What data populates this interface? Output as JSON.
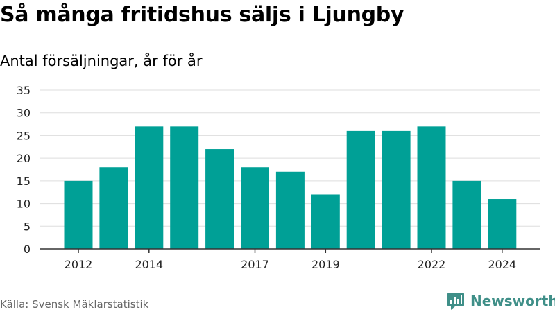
{
  "title": "Så många fritidshus säljs i Ljungby",
  "subtitle": "Antal försäljningar, år för år",
  "source": "Källa: Svensk Mäklarstatistik",
  "brand": {
    "name": "Newsworthy",
    "icon": "bar-chart-logo-icon",
    "color": "#3f8f88"
  },
  "chart_data": {
    "type": "bar",
    "categories": [
      "2012",
      "2013",
      "2014",
      "2015",
      "2016",
      "2017",
      "2018",
      "2019",
      "2020",
      "2021",
      "2022",
      "2023",
      "2024"
    ],
    "values": [
      15,
      18,
      27,
      27,
      22,
      18,
      17,
      12,
      26,
      26,
      27,
      15,
      11
    ],
    "x_tick_labels": [
      "2012",
      "",
      "2014",
      "",
      "",
      "2017",
      "",
      "2019",
      "",
      "",
      "2022",
      "",
      "2024"
    ],
    "y_ticks": [
      0,
      5,
      10,
      15,
      20,
      25,
      30,
      35
    ],
    "ylim": [
      0,
      35
    ],
    "xlabel": "",
    "ylabel": "",
    "grid": true,
    "bar_color": "#00a096"
  }
}
